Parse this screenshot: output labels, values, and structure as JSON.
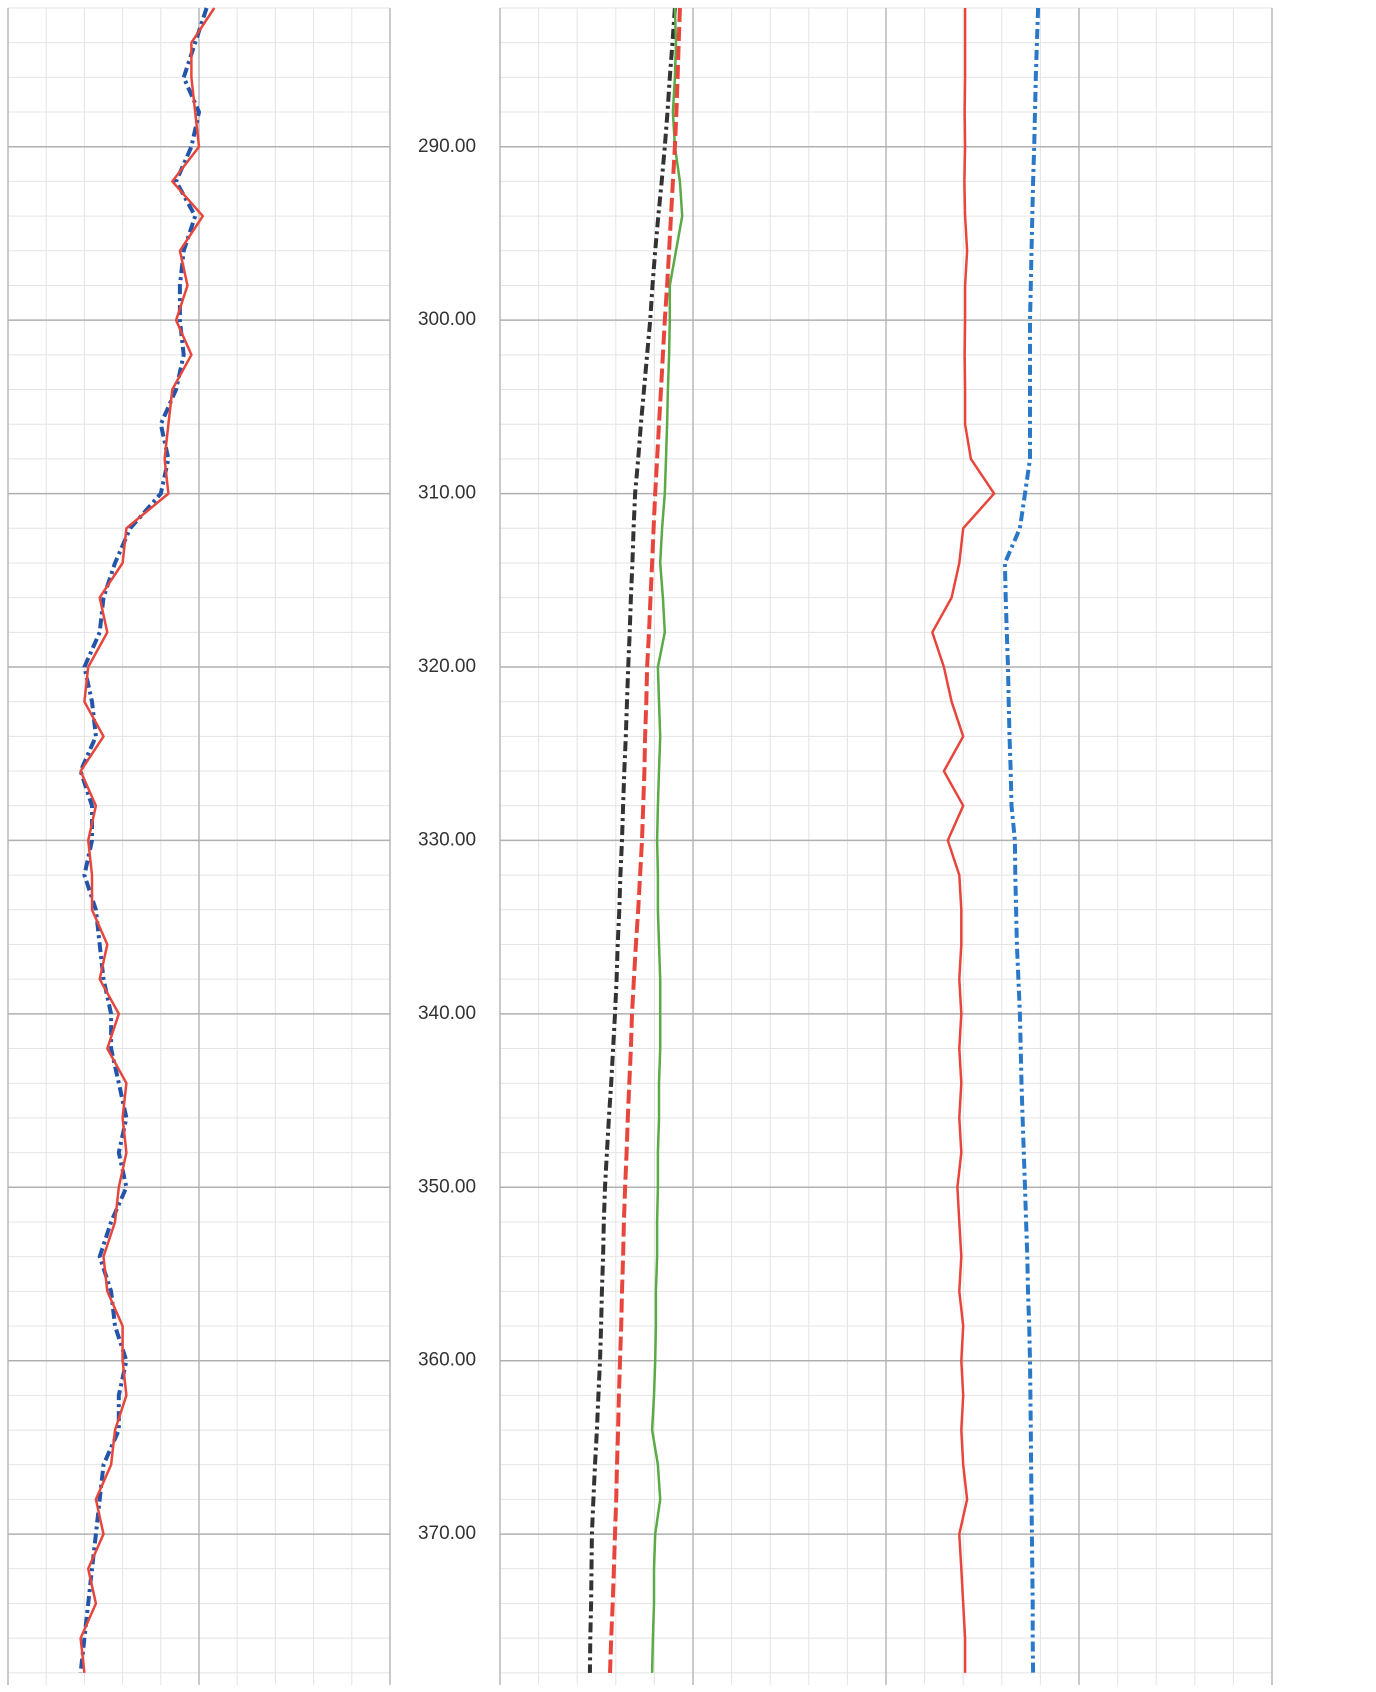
{
  "chart_data": {
    "type": "well-log",
    "ylim": [
      282,
      378.7
    ],
    "yticks": [
      {
        "value": 290,
        "label": "290.00"
      },
      {
        "value": 300,
        "label": "300.00"
      },
      {
        "value": 310,
        "label": "310.00"
      },
      {
        "value": 320,
        "label": "320.00"
      },
      {
        "value": 330,
        "label": "330.00"
      },
      {
        "value": 340,
        "label": "340.00"
      },
      {
        "value": 350,
        "label": "350.00"
      },
      {
        "value": 360,
        "label": "360.00"
      },
      {
        "value": 370,
        "label": "370.00"
      }
    ],
    "grid": true,
    "tracks": [
      {
        "xlim": [
          0,
          10
        ]
      },
      {
        "xlim": [
          0,
          20
        ]
      }
    ],
    "depth": [
      282,
      284,
      286,
      288,
      290,
      292,
      294,
      296,
      298,
      300,
      302,
      304,
      306,
      308,
      310,
      312,
      314,
      316,
      318,
      320,
      322,
      324,
      326,
      328,
      330,
      332,
      334,
      336,
      338,
      340,
      342,
      344,
      346,
      348,
      350,
      352,
      354,
      356,
      358,
      360,
      362,
      364,
      366,
      368,
      370,
      372,
      374,
      376,
      378
    ],
    "series": [
      {
        "track": 0,
        "color": "#2255aa",
        "dash": "10 4 3 4",
        "values": [
          5.2,
          4.9,
          4.6,
          5.0,
          4.8,
          4.4,
          4.9,
          4.6,
          4.5,
          4.5,
          4.6,
          4.4,
          4.0,
          4.2,
          4.0,
          3.2,
          2.8,
          2.5,
          2.4,
          2.0,
          2.2,
          2.3,
          1.9,
          2.2,
          2.2,
          2.0,
          2.3,
          2.4,
          2.5,
          2.7,
          2.7,
          2.9,
          3.1,
          2.9,
          3.1,
          2.7,
          2.4,
          2.7,
          2.8,
          3.1,
          2.9,
          2.9,
          2.5,
          2.4,
          2.3,
          2.2,
          2.1,
          2.0,
          1.9
        ]
      },
      {
        "track": 0,
        "color": "#e8463c",
        "values": [
          5.4,
          4.8,
          4.8,
          4.9,
          5.0,
          4.3,
          5.1,
          4.5,
          4.7,
          4.4,
          4.8,
          4.3,
          4.2,
          4.1,
          4.2,
          3.1,
          3.0,
          2.4,
          2.6,
          2.1,
          2.0,
          2.5,
          1.9,
          2.3,
          2.1,
          2.2,
          2.2,
          2.6,
          2.4,
          2.9,
          2.6,
          3.1,
          3.0,
          3.1,
          2.9,
          2.8,
          2.5,
          2.6,
          3.0,
          3.0,
          3.1,
          2.8,
          2.7,
          2.3,
          2.5,
          2.1,
          2.3,
          1.9,
          2.0
        ]
      },
      {
        "track": 1,
        "color": "#333333",
        "dash": "10 4 3 4",
        "values": [
          4.53,
          4.47,
          4.4,
          4.34,
          4.27,
          4.19,
          4.1,
          4.02,
          3.95,
          3.89,
          3.81,
          3.73,
          3.65,
          3.58,
          3.5,
          3.46,
          3.43,
          3.39,
          3.36,
          3.32,
          3.29,
          3.26,
          3.22,
          3.19,
          3.16,
          3.12,
          3.09,
          3.05,
          3.02,
          2.98,
          2.93,
          2.88,
          2.82,
          2.77,
          2.72,
          2.69,
          2.67,
          2.64,
          2.62,
          2.59,
          2.55,
          2.51,
          2.46,
          2.42,
          2.38,
          2.37,
          2.36,
          2.34,
          2.33
        ]
      },
      {
        "track": 1,
        "color": "#5aaa46",
        "values": [
          4.53,
          4.56,
          4.53,
          4.48,
          4.53,
          4.66,
          4.72,
          4.56,
          4.4,
          4.4,
          4.38,
          4.35,
          4.33,
          4.3,
          4.27,
          4.2,
          4.15,
          4.22,
          4.27,
          4.09,
          4.12,
          4.15,
          4.12,
          4.09,
          4.07,
          4.09,
          4.09,
          4.12,
          4.15,
          4.15,
          4.15,
          4.12,
          4.12,
          4.09,
          4.09,
          4.07,
          4.07,
          4.04,
          4.04,
          4.02,
          3.99,
          3.94,
          4.09,
          4.15,
          4.02,
          3.99,
          3.99,
          3.96,
          3.94
        ]
      },
      {
        "track": 1,
        "color": "#e8463c",
        "dash": "14 5",
        "values": [
          4.66,
          4.63,
          4.6,
          4.57,
          4.53,
          4.48,
          4.43,
          4.38,
          4.33,
          4.27,
          4.22,
          4.17,
          4.12,
          4.07,
          4.02,
          3.98,
          3.94,
          3.9,
          3.86,
          3.81,
          3.79,
          3.76,
          3.74,
          3.71,
          3.68,
          3.63,
          3.58,
          3.52,
          3.47,
          3.42,
          3.39,
          3.35,
          3.31,
          3.28,
          3.24,
          3.21,
          3.19,
          3.16,
          3.14,
          3.11,
          3.08,
          3.06,
          3.03,
          3.01,
          2.98,
          2.95,
          2.92,
          2.88,
          2.85
        ]
      },
      {
        "track": 1,
        "color": "#e8463c",
        "values": [
          12.05,
          12.05,
          12.05,
          12.04,
          12.05,
          12.03,
          12.05,
          12.1,
          12.05,
          12.05,
          12.04,
          12.05,
          12.05,
          12.2,
          12.8,
          12.0,
          11.9,
          11.7,
          11.2,
          11.5,
          11.7,
          12.0,
          11.5,
          12.0,
          11.6,
          11.9,
          11.95,
          11.95,
          11.9,
          11.95,
          11.9,
          11.95,
          11.9,
          11.95,
          11.85,
          11.9,
          11.95,
          11.9,
          12.0,
          11.95,
          12.0,
          11.95,
          12.0,
          12.1,
          11.9,
          11.95,
          12.0,
          12.05,
          12.05
        ]
      },
      {
        "track": 1,
        "color": "#2a78c8",
        "dash": "10 4 3 4",
        "values": [
          13.94,
          13.91,
          13.88,
          13.86,
          13.84,
          13.81,
          13.79,
          13.77,
          13.75,
          13.73,
          13.73,
          13.73,
          13.73,
          13.73,
          13.6,
          13.47,
          13.08,
          13.1,
          13.13,
          13.16,
          13.18,
          13.2,
          13.23,
          13.25,
          13.34,
          13.35,
          13.37,
          13.39,
          13.43,
          13.47,
          13.49,
          13.51,
          13.54,
          13.57,
          13.6,
          13.63,
          13.66,
          13.68,
          13.71,
          13.73,
          13.74,
          13.75,
          13.76,
          13.77,
          13.78,
          13.79,
          13.8,
          13.8,
          13.81
        ]
      }
    ]
  }
}
